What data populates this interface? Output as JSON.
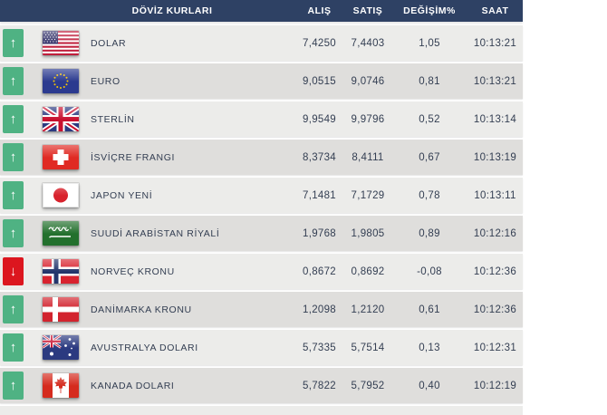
{
  "header": {
    "title": "DÖVİZ KURLARI",
    "columns": {
      "buy": "ALIŞ",
      "sell": "SATIŞ",
      "change": "DEĞİŞİM%",
      "time": "SAAT"
    }
  },
  "colors": {
    "header_bg": "#2e4164",
    "row_light": "#ececea",
    "row_dark": "#dfdedc",
    "up_green": "#4fb283",
    "down_red": "#dc161f",
    "text_dark": "#333e52"
  },
  "rows": [
    {
      "name": "DOLAR",
      "flag": "us-flag",
      "direction": "up",
      "alis": "7,4250",
      "satis": "7,4403",
      "degisim": "1,05",
      "saat": "10:13:21"
    },
    {
      "name": "EURO",
      "flag": "eu-flag",
      "direction": "up",
      "alis": "9,0515",
      "satis": "9,0746",
      "degisim": "0,81",
      "saat": "10:13:21"
    },
    {
      "name": "STERLİN",
      "flag": "uk-flag",
      "direction": "up",
      "alis": "9,9549",
      "satis": "9,9796",
      "degisim": "0,52",
      "saat": "10:13:14"
    },
    {
      "name": "İSVİÇRE FRANGI",
      "flag": "switzerland-flag",
      "direction": "up",
      "alis": "8,3734",
      "satis": "8,4111",
      "degisim": "0,67",
      "saat": "10:13:19"
    },
    {
      "name": "JAPON YENİ",
      "flag": "japan-flag",
      "direction": "up",
      "alis": "7,1481",
      "satis": "7,1729",
      "degisim": "0,78",
      "saat": "10:13:11"
    },
    {
      "name": "SUUDİ ARABİSTAN RİYALİ",
      "flag": "saudi-arabia-flag",
      "direction": "up",
      "alis": "1,9768",
      "satis": "1,9805",
      "degisim": "0,89",
      "saat": "10:12:16"
    },
    {
      "name": "NORVEÇ KRONU",
      "flag": "norway-flag",
      "direction": "down",
      "alis": "0,8672",
      "satis": "0,8692",
      "degisim": "-0,08",
      "saat": "10:12:36"
    },
    {
      "name": "DANİMARKA KRONU",
      "flag": "denmark-flag",
      "direction": "up",
      "alis": "1,2098",
      "satis": "1,2120",
      "degisim": "0,61",
      "saat": "10:12:36"
    },
    {
      "name": "AVUSTRALYA DOLARI",
      "flag": "australia-flag",
      "direction": "up",
      "alis": "5,7335",
      "satis": "5,7514",
      "degisim": "0,13",
      "saat": "10:12:31"
    },
    {
      "name": "KANADA DOLARI",
      "flag": "canada-flag",
      "direction": "up",
      "alis": "5,7822",
      "satis": "5,7952",
      "degisim": "0,40",
      "saat": "10:12:19"
    }
  ]
}
